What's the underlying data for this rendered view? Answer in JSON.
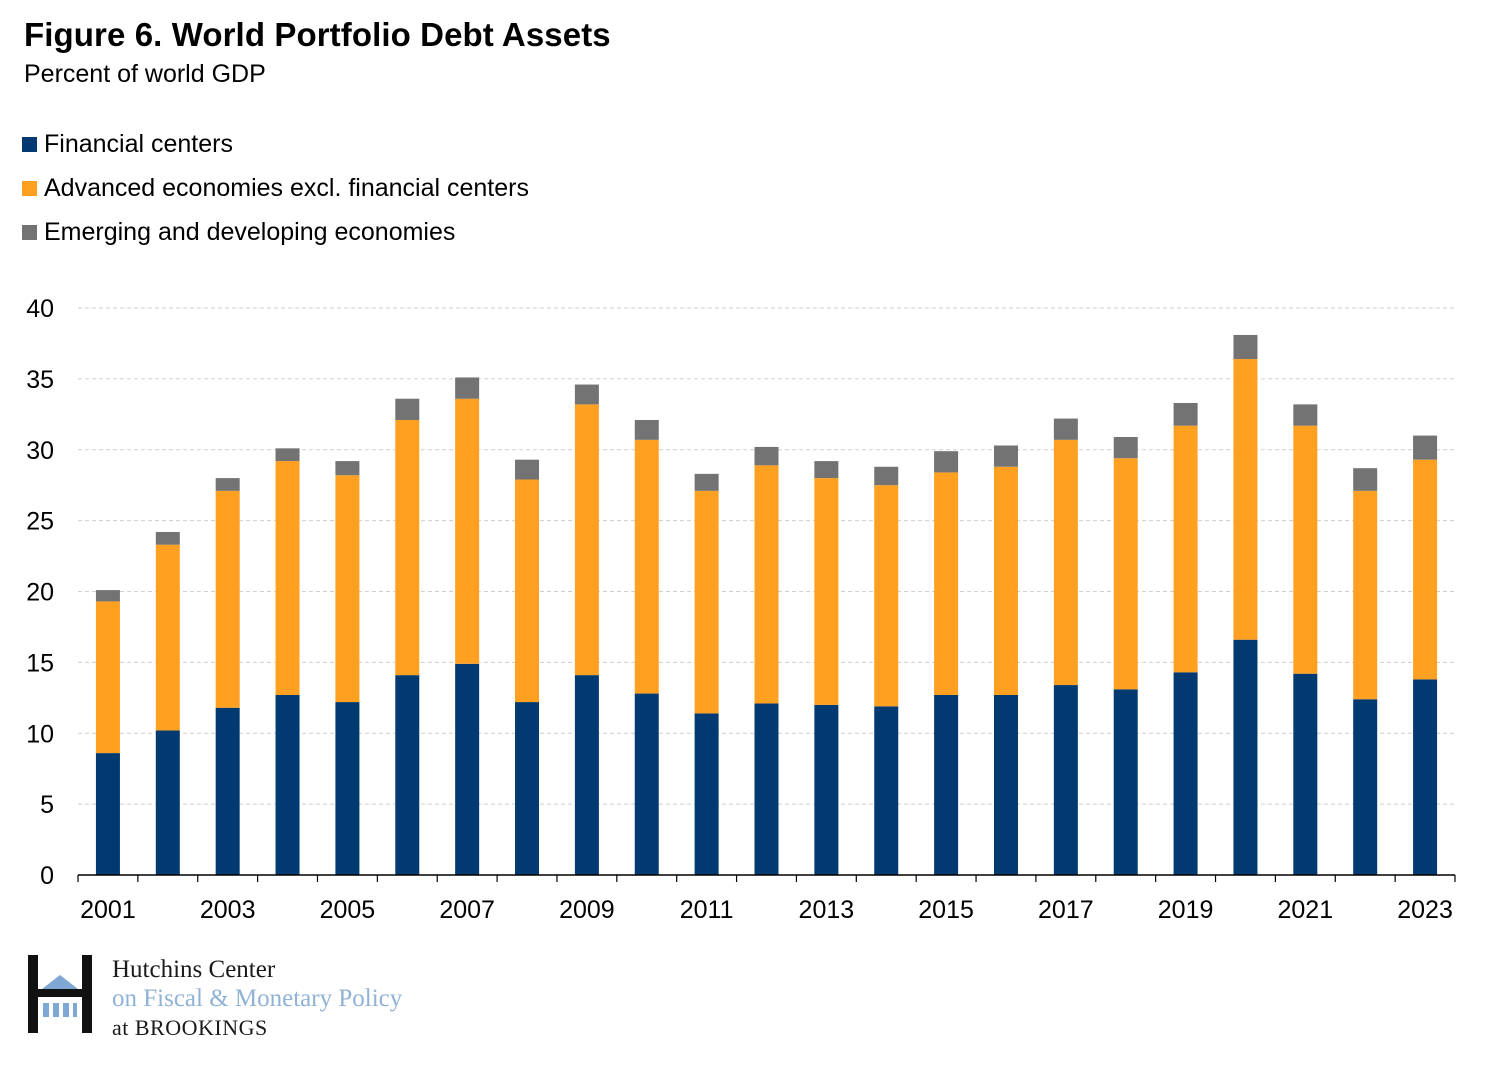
{
  "header": {
    "title": "Figure 6. World Portfolio Debt Assets",
    "subtitle": "Percent of world GDP"
  },
  "colors": {
    "financial_centers": "#003a70",
    "advanced_economies": "#ffa021",
    "emerging_developing": "#737373",
    "gridline": "#cfcfcf"
  },
  "chart_data": {
    "type": "bar",
    "stacked": true,
    "title": "Figure 6. World Portfolio Debt Assets",
    "ylabel": "Percent of world GDP",
    "xlabel": "",
    "ylim": [
      0,
      40
    ],
    "yticks": [
      0,
      5,
      10,
      15,
      20,
      25,
      30,
      35,
      40
    ],
    "grid": true,
    "legend_position": "top-left",
    "categories": [
      "2001",
      "2002",
      "2003",
      "2004",
      "2005",
      "2006",
      "2007",
      "2008",
      "2009",
      "2010",
      "2011",
      "2012",
      "2013",
      "2014",
      "2015",
      "2016",
      "2017",
      "2018",
      "2019",
      "2020",
      "2021",
      "2022",
      "2023"
    ],
    "x_tick_labels": [
      "2001",
      "2003",
      "2005",
      "2007",
      "2009",
      "2011",
      "2013",
      "2015",
      "2017",
      "2019",
      "2021",
      "2023"
    ],
    "series": [
      {
        "name": "Financial centers",
        "color": "#003a70",
        "values": [
          8.6,
          10.2,
          11.8,
          12.7,
          12.2,
          14.1,
          14.9,
          12.2,
          14.1,
          12.8,
          11.4,
          12.1,
          12.0,
          11.9,
          12.7,
          12.7,
          13.4,
          13.1,
          14.3,
          16.6,
          14.2,
          12.4,
          13.8
        ]
      },
      {
        "name": "Advanced economies excl. financial centers",
        "color": "#ffa021",
        "values": [
          10.7,
          13.1,
          15.3,
          16.5,
          16.0,
          18.0,
          18.7,
          15.7,
          19.1,
          17.9,
          15.7,
          16.8,
          16.0,
          15.6,
          15.7,
          16.1,
          17.3,
          16.3,
          17.4,
          19.8,
          17.5,
          14.7,
          15.5
        ]
      },
      {
        "name": "Emerging and developing economies",
        "color": "#737373",
        "values": [
          0.8,
          0.9,
          0.9,
          0.9,
          1.0,
          1.5,
          1.5,
          1.4,
          1.4,
          1.4,
          1.2,
          1.3,
          1.2,
          1.3,
          1.5,
          1.5,
          1.5,
          1.5,
          1.6,
          1.7,
          1.5,
          1.6,
          1.7
        ]
      }
    ]
  },
  "logo": {
    "line1": "Hutchins Center",
    "line2": "on Fiscal & Monetary Policy",
    "line3": "at BROOKINGS"
  }
}
